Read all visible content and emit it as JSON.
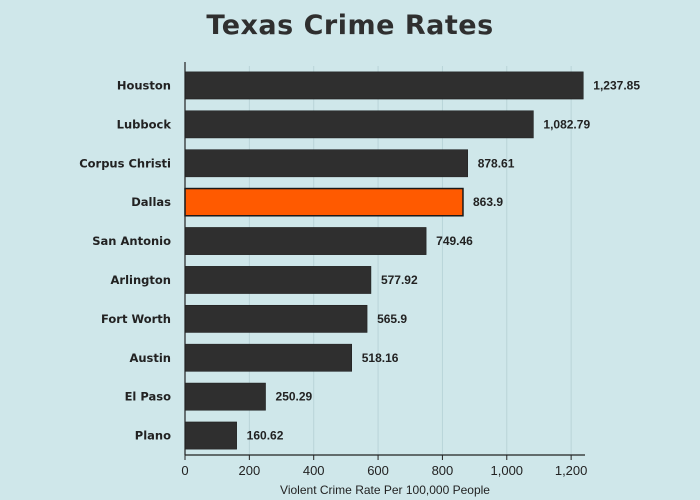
{
  "chart_data": {
    "type": "bar",
    "orientation": "horizontal",
    "title": "Texas Crime Rates",
    "xlabel": "Violent Crime Rate Per 100,000 People",
    "ylabel": "",
    "categories": [
      "Houston",
      "Lubbock",
      "Corpus Christi",
      "Dallas",
      "San Antonio",
      "Arlington",
      "Fort Worth",
      "Austin",
      "El Paso",
      "Plano"
    ],
    "values": [
      1237.85,
      1082.79,
      878.61,
      863.9,
      749.46,
      577.92,
      565.9,
      518.16,
      250.29,
      160.62
    ],
    "value_labels": [
      "1,237.85",
      "1,082.79",
      "878.61",
      "863.9",
      "749.46",
      "577.92",
      "565.9",
      "518.16",
      "250.29",
      "160.62"
    ],
    "highlight": "Dallas",
    "xlim": [
      0,
      1240
    ],
    "xticks": [
      0,
      200,
      400,
      600,
      800,
      1000,
      1200
    ],
    "xtick_labels": [
      "0",
      "200",
      "400",
      "600",
      "800",
      "1,000",
      "1,200"
    ],
    "grid": "vertical",
    "colors": {
      "background": "#cfe7ea",
      "bar": "#2f2f2f",
      "highlight": "#ff5a00",
      "grid": "#b9d4d8"
    }
  }
}
